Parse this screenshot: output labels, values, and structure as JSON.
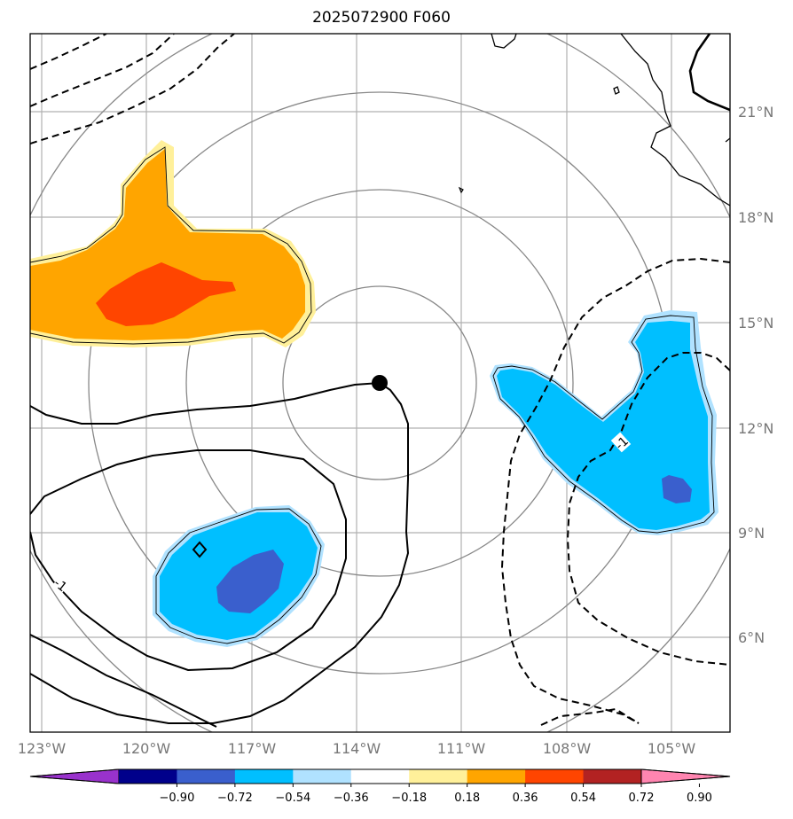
{
  "title": "2025072900 F060",
  "lon_ticks": [
    "123°W",
    "120°W",
    "117°W",
    "114°W",
    "111°W",
    "108°W",
    "105°W"
  ],
  "lat_ticks": [
    "21°N",
    "18°N",
    "15°N",
    "12°N",
    "9°N",
    "6°N"
  ],
  "colorbar": {
    "colors": [
      "#9932cc",
      "#00008b",
      "#3a5fcd",
      "#00bfff",
      "#b0e2ff",
      "#ffffff",
      "#fff09a",
      "#ffa500",
      "#ff4500",
      "#b22222",
      "#ff85b0"
    ],
    "labels": [
      "−0.90",
      "−0.72",
      "−0.54",
      "−0.36",
      "−0.18",
      "0.18",
      "0.36",
      "0.54",
      "0.72",
      "0.90"
    ]
  },
  "contour_labels": [
    "-1",
    "-1"
  ],
  "storm_center_icon": "storm-center-dot-icon"
}
